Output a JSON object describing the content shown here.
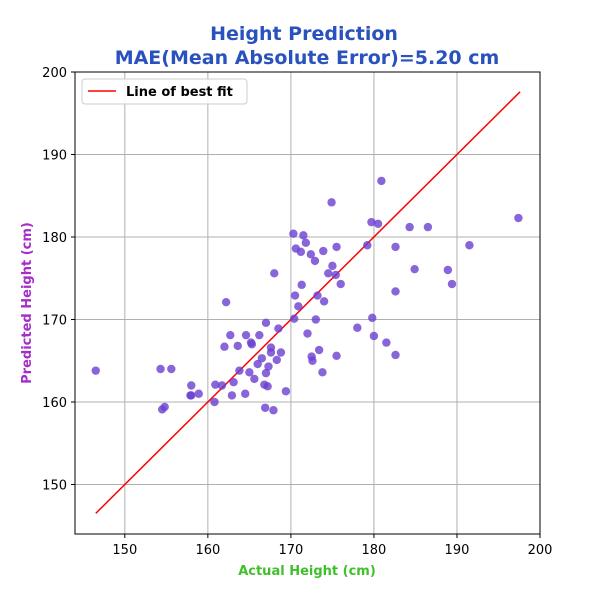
{
  "chart_data": {
    "type": "scatter",
    "title": "Height Prediction",
    "subtitle": "MAE(Mean Absolute Error)=5.20 cm",
    "title_color": "#2a52be",
    "xlabel": "Actual Height (cm)",
    "xlabel_color": "#3fc02a",
    "ylabel": "Predicted Height (cm)",
    "ylabel_color": "#a52ec8",
    "xlim": [
      144,
      200
    ],
    "ylim": [
      144,
      200
    ],
    "xticks": [
      150,
      160,
      170,
      180,
      190,
      200
    ],
    "yticks": [
      150,
      160,
      170,
      180,
      190,
      200
    ],
    "grid": true,
    "legend_position": "top-left",
    "legend_label": "Line of best fit",
    "point_color": "#6a3fd0",
    "line_color": "#ff0000",
    "best_fit_line": {
      "x": [
        146.5,
        197.6
      ],
      "y": [
        146.5,
        197.6
      ]
    },
    "points": [
      [
        146.5,
        163.8
      ],
      [
        154.3,
        164.0
      ],
      [
        155.6,
        164.0
      ],
      [
        154.5,
        159.1
      ],
      [
        154.8,
        159.4
      ],
      [
        157.9,
        160.8
      ],
      [
        158.0,
        160.8
      ],
      [
        158.0,
        162.0
      ],
      [
        158.9,
        161.0
      ],
      [
        160.8,
        160.0
      ],
      [
        160.9,
        162.1
      ],
      [
        161.7,
        162.0
      ],
      [
        162.0,
        166.7
      ],
      [
        162.2,
        172.1
      ],
      [
        162.7,
        168.1
      ],
      [
        162.9,
        160.8
      ],
      [
        163.1,
        162.4
      ],
      [
        163.6,
        166.8
      ],
      [
        163.8,
        163.8
      ],
      [
        164.5,
        161.0
      ],
      [
        164.6,
        168.1
      ],
      [
        165.0,
        163.6
      ],
      [
        165.2,
        167.2
      ],
      [
        165.3,
        167.0
      ],
      [
        165.6,
        162.8
      ],
      [
        166.0,
        164.6
      ],
      [
        166.2,
        168.1
      ],
      [
        166.5,
        165.3
      ],
      [
        166.8,
        162.1
      ],
      [
        166.9,
        159.3
      ],
      [
        167.0,
        169.6
      ],
      [
        167.0,
        163.5
      ],
      [
        167.2,
        161.9
      ],
      [
        167.3,
        164.3
      ],
      [
        167.6,
        166.6
      ],
      [
        167.6,
        166.0
      ],
      [
        167.9,
        159.0
      ],
      [
        168.0,
        175.6
      ],
      [
        168.3,
        165.1
      ],
      [
        168.5,
        168.9
      ],
      [
        168.8,
        166.0
      ],
      [
        169.4,
        161.3
      ],
      [
        170.3,
        180.4
      ],
      [
        170.5,
        172.9
      ],
      [
        170.6,
        178.6
      ],
      [
        170.4,
        170.1
      ],
      [
        170.9,
        171.6
      ],
      [
        171.2,
        178.2
      ],
      [
        171.3,
        174.2
      ],
      [
        171.5,
        180.2
      ],
      [
        171.8,
        179.3
      ],
      [
        172.0,
        168.3
      ],
      [
        172.4,
        177.9
      ],
      [
        172.5,
        165.5
      ],
      [
        172.6,
        165.0
      ],
      [
        172.9,
        177.1
      ],
      [
        173.0,
        170.0
      ],
      [
        173.2,
        172.9
      ],
      [
        173.4,
        166.3
      ],
      [
        173.8,
        163.6
      ],
      [
        173.9,
        178.3
      ],
      [
        174.0,
        172.2
      ],
      [
        174.5,
        175.6
      ],
      [
        174.9,
        184.2
      ],
      [
        175.0,
        176.5
      ],
      [
        175.4,
        175.4
      ],
      [
        175.5,
        178.8
      ],
      [
        175.5,
        165.6
      ],
      [
        176.0,
        174.3
      ],
      [
        178.0,
        169.0
      ],
      [
        179.2,
        179.0
      ],
      [
        179.7,
        181.8
      ],
      [
        179.8,
        170.2
      ],
      [
        180.0,
        168.0
      ],
      [
        180.5,
        181.6
      ],
      [
        180.9,
        186.8
      ],
      [
        181.5,
        167.2
      ],
      [
        182.6,
        178.8
      ],
      [
        182.6,
        173.4
      ],
      [
        182.6,
        165.7
      ],
      [
        184.3,
        181.2
      ],
      [
        184.9,
        176.1
      ],
      [
        186.5,
        181.2
      ],
      [
        188.9,
        176.0
      ],
      [
        189.4,
        174.3
      ],
      [
        191.5,
        179.0
      ],
      [
        197.4,
        182.3
      ]
    ]
  }
}
